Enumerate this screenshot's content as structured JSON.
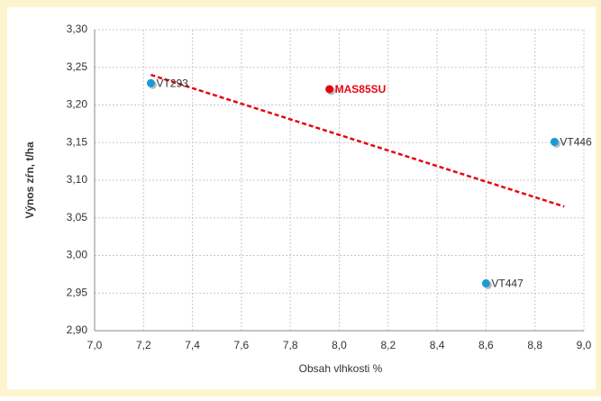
{
  "chart_data": {
    "type": "scatter",
    "xlabel": "Obsah vlhkosti %",
    "ylabel": "Výnos zŕn, t/ha",
    "labels": [
      "VT293",
      "MAS85SU",
      "VT446",
      "VT447"
    ],
    "x": [
      7.23,
      7.96,
      8.88,
      8.6
    ],
    "y": [
      3.229,
      3.221,
      3.151,
      2.963
    ],
    "colors": [
      "#1a9ad6",
      "#e30613",
      "#1a9ad6",
      "#1a9ad6"
    ],
    "trendline": {
      "x": [
        7.23,
        8.92
      ],
      "y": [
        3.24,
        3.065
      ],
      "color": "#e30613"
    },
    "xlim": [
      7.0,
      9.0
    ],
    "xticks": [
      {
        "value": 7.0,
        "label": "7,0"
      },
      {
        "value": 7.2,
        "label": "7,2"
      },
      {
        "value": 7.4,
        "label": "7,4"
      },
      {
        "value": 7.6,
        "label": "7,6"
      },
      {
        "value": 7.8,
        "label": "7,8"
      },
      {
        "value": 8.0,
        "label": "8,0"
      },
      {
        "value": 8.2,
        "label": "8,2"
      },
      {
        "value": 8.4,
        "label": "8,4"
      },
      {
        "value": 8.6,
        "label": "8,6"
      },
      {
        "value": 8.8,
        "label": "8,8"
      },
      {
        "value": 9.0,
        "label": "9,0"
      }
    ],
    "ylim": [
      2.9,
      3.3
    ],
    "yticks": [
      {
        "value": 2.9,
        "label": "2,90"
      },
      {
        "value": 2.95,
        "label": "2,95"
      },
      {
        "value": 3.0,
        "label": "3,00"
      },
      {
        "value": 3.05,
        "label": "3,05"
      },
      {
        "value": 3.1,
        "label": "3,10"
      },
      {
        "value": 3.15,
        "label": "3,15"
      },
      {
        "value": 3.2,
        "label": "3,20"
      },
      {
        "value": 3.25,
        "label": "3,25"
      },
      {
        "value": 3.3,
        "label": "3,30"
      }
    ],
    "grid": true
  }
}
